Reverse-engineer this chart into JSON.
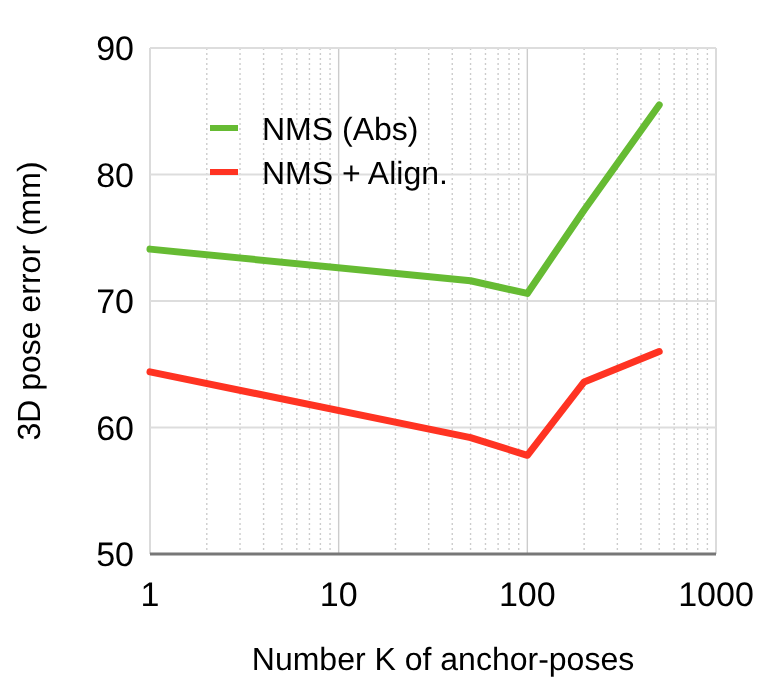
{
  "chart_data": {
    "type": "line",
    "xlabel": "Number K of anchor-poses",
    "ylabel": "3D pose error (mm)",
    "log": "x",
    "xlim": [
      1,
      1000
    ],
    "ylim": [
      50,
      90
    ],
    "xticks": [
      1,
      {
        "value": 2,
        "label": null
      },
      {
        "value": 3,
        "label": null
      },
      {
        "value": 4,
        "label": null
      },
      {
        "value": 5,
        "label": null
      },
      {
        "value": 6,
        "label": null
      },
      {
        "value": 7,
        "label": null
      },
      {
        "value": 8,
        "label": null
      },
      {
        "value": 9,
        "label": null
      },
      10,
      {
        "value": 20,
        "label": null
      },
      {
        "value": 30,
        "label": null
      },
      {
        "value": 40,
        "label": null
      },
      {
        "value": 50,
        "label": null
      },
      {
        "value": 60,
        "label": null
      },
      {
        "value": 70,
        "label": null
      },
      {
        "value": 80,
        "label": null
      },
      {
        "value": 90,
        "label": null
      },
      100,
      {
        "value": 200,
        "label": null
      },
      {
        "value": 300,
        "label": null
      },
      {
        "value": 400,
        "label": null
      },
      {
        "value": 500,
        "label": null
      },
      {
        "value": 600,
        "label": null
      },
      {
        "value": 700,
        "label": null
      },
      {
        "value": 800,
        "label": null
      },
      {
        "value": 900,
        "label": null
      },
      1000
    ],
    "yticks": [
      50,
      60,
      70,
      80,
      90
    ],
    "grid": true,
    "legend": "top left",
    "marker": "none",
    "line_style": "solid",
    "series": [
      {
        "name": "NMS (Abs)",
        "color": "#66bb33",
        "x": [
          1,
          50,
          100,
          200,
          500
        ],
        "values": [
          74.1,
          71.6,
          70.6,
          77.2,
          85.5
        ]
      },
      {
        "name": "NMS + Align.",
        "color": "#ff3322",
        "x": [
          1,
          50,
          100,
          200,
          500
        ],
        "values": [
          64.4,
          59.2,
          57.8,
          63.6,
          66.0
        ]
      }
    ]
  }
}
